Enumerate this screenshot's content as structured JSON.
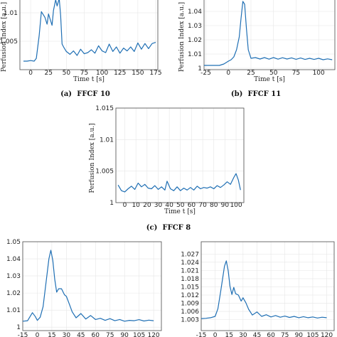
{
  "figure": {
    "series_color": "#1f6fb4"
  },
  "chart_data": [
    {
      "id": "a",
      "type": "line",
      "caption_tag": "(a)",
      "caption_name": "FFCF 10",
      "xlabel": "Time t [s]",
      "ylabel": "Perfusion Index [a.u.]",
      "xlim": [
        -15,
        178
      ],
      "ylim": [
        1.0,
        1.0125
      ],
      "xticks": [
        0,
        25,
        50,
        75,
        100,
        125,
        150,
        175
      ],
      "yticks": [
        1.005,
        1.01
      ],
      "grid": true,
      "series": [
        {
          "x": [
            -10,
            -5,
            0,
            5,
            8,
            12,
            15,
            18,
            20,
            23,
            25,
            27,
            30,
            32,
            35,
            37,
            40,
            42,
            44,
            47,
            50,
            55,
            60,
            65,
            70,
            75,
            80,
            85,
            90,
            95,
            100,
            105,
            110,
            115,
            120,
            125,
            130,
            135,
            140,
            145,
            150,
            155,
            160,
            165,
            170,
            175
          ],
          "y": [
            1.0015,
            1.0015,
            1.0016,
            1.0015,
            1.002,
            1.006,
            1.0102,
            1.0096,
            1.0092,
            1.008,
            1.0098,
            1.009,
            1.0078,
            1.0104,
            1.0123,
            1.0112,
            1.0125,
            1.0095,
            1.0045,
            1.0038,
            1.0032,
            1.0027,
            1.0033,
            1.0025,
            1.0036,
            1.0028,
            1.003,
            1.0035,
            1.0029,
            1.0042,
            1.0033,
            1.003,
            1.0045,
            1.0032,
            1.004,
            1.0029,
            1.0038,
            1.0033,
            1.004,
            1.0032,
            1.0047,
            1.0036,
            1.0046,
            1.0037,
            1.0046,
            1.0048
          ]
        }
      ]
    },
    {
      "id": "b",
      "type": "line",
      "caption_tag": "(b)",
      "caption_name": "FFCF 11",
      "xlabel": "Time t [s]",
      "ylabel": "Perfusion Index [a.u.]",
      "xlim": [
        -27,
        118
      ],
      "ylim": [
        0.999,
        1.049
      ],
      "xticks": [
        -25,
        0,
        25,
        50,
        75,
        100
      ],
      "yticks": [
        1,
        1.01,
        1.02,
        1.03,
        1.04
      ],
      "grid": true,
      "series": [
        {
          "x": [
            -27,
            -20,
            -10,
            -5,
            0,
            3,
            6,
            9,
            12,
            14,
            16,
            18,
            20,
            22,
            25,
            30,
            35,
            40,
            45,
            50,
            55,
            60,
            65,
            70,
            75,
            80,
            85,
            90,
            95,
            100,
            105,
            110,
            115
          ],
          "y": [
            1.002,
            1.002,
            1.002,
            1.003,
            1.005,
            1.006,
            1.008,
            1.013,
            1.022,
            1.035,
            1.047,
            1.045,
            1.028,
            1.013,
            1.007,
            1.0075,
            1.0065,
            1.0075,
            1.0064,
            1.0075,
            1.0064,
            1.0074,
            1.0065,
            1.0073,
            1.0063,
            1.0072,
            1.0062,
            1.007,
            1.0062,
            1.007,
            1.006,
            1.0066,
            1.006
          ]
        }
      ]
    },
    {
      "id": "c",
      "type": "line",
      "caption_tag": "(c)",
      "caption_name": "FFCF 8",
      "xlabel": "Time t [s]",
      "ylabel": "Perfusion Index [a.u.]",
      "xlim": [
        -8,
        107
      ],
      "ylim": [
        1.0,
        1.015
      ],
      "xticks": [
        0,
        10,
        20,
        30,
        40,
        50,
        60,
        70,
        80,
        90,
        100
      ],
      "yticks": [
        1,
        1.005,
        1.01,
        1.015
      ],
      "grid": true,
      "series": [
        {
          "x": [
            -6,
            -3,
            0,
            3,
            6,
            9,
            12,
            15,
            18,
            21,
            24,
            27,
            30,
            33,
            36,
            38,
            41,
            44,
            47,
            50,
            53,
            56,
            59,
            62,
            65,
            68,
            71,
            74,
            77,
            80,
            83,
            86,
            89,
            92,
            95,
            98,
            100,
            102,
            104
          ],
          "y": [
            1.0028,
            1.0019,
            1.0017,
            1.0022,
            1.0026,
            1.0021,
            1.0031,
            1.0025,
            1.0029,
            1.0023,
            1.0022,
            1.0027,
            1.0021,
            1.0025,
            1.002,
            1.0034,
            1.0022,
            1.0019,
            1.0025,
            1.0019,
            1.0023,
            1.002,
            1.0024,
            1.002,
            1.0026,
            1.0022,
            1.0024,
            1.0023,
            1.0025,
            1.0022,
            1.0027,
            1.0024,
            1.0028,
            1.0033,
            1.0029,
            1.004,
            1.0046,
            1.0036,
            1.002
          ]
        }
      ]
    },
    {
      "id": "d",
      "type": "line",
      "ylim": [
        0.998,
        1.05
      ],
      "xlim": [
        -15,
        128
      ],
      "yticks": [
        1,
        1.01,
        1.02,
        1.03,
        1.04,
        1.05
      ],
      "xticks": [
        -15,
        0,
        15,
        30,
        45,
        60,
        75,
        90,
        105,
        120
      ],
      "xtick_labels": [
        "-15",
        "0",
        "15",
        "30",
        "45",
        "60",
        "75",
        "90",
        "105",
        "120"
      ],
      "grid": true,
      "series": [
        {
          "x": [
            -15,
            -10,
            -5,
            -2,
            0,
            3,
            6,
            9,
            12,
            14,
            16,
            18,
            20,
            22,
            25,
            28,
            30,
            33,
            36,
            40,
            45,
            50,
            55,
            60,
            65,
            70,
            75,
            80,
            85,
            90,
            95,
            100,
            105,
            110,
            115,
            120
          ],
          "y": [
            1.0035,
            1.0038,
            1.0085,
            1.0062,
            1.004,
            1.0058,
            1.012,
            1.026,
            1.04,
            1.045,
            1.039,
            1.028,
            1.0205,
            1.0225,
            1.0225,
            1.019,
            1.018,
            1.0135,
            1.009,
            1.0055,
            1.008,
            1.0048,
            1.0068,
            1.0045,
            1.0052,
            1.004,
            1.005,
            1.0038,
            1.0045,
            1.0035,
            1.004,
            1.0038,
            1.0044,
            1.0036,
            1.0041,
            1.0038
          ]
        }
      ]
    },
    {
      "id": "e",
      "type": "line",
      "ylim": [
        0.999,
        1.0315
      ],
      "xlim": [
        -15,
        128
      ],
      "yticks": [
        1.003,
        1.006,
        1.009,
        1.012,
        1.015,
        1.018,
        1.021,
        1.024,
        1.027
      ],
      "xticks": [
        -15,
        0,
        15,
        30,
        45,
        60,
        75,
        90,
        105,
        120
      ],
      "xtick_labels": [
        "-15",
        "0",
        "15",
        "30",
        "45",
        "60",
        "75",
        "90",
        "105",
        "120"
      ],
      "grid": true,
      "series": [
        {
          "x": [
            -15,
            -10,
            -5,
            0,
            3,
            6,
            8,
            10,
            12,
            14,
            16,
            18,
            20,
            22,
            25,
            28,
            30,
            33,
            36,
            40,
            45,
            50,
            55,
            60,
            65,
            70,
            75,
            80,
            85,
            90,
            95,
            100,
            105,
            110,
            115,
            120
          ],
          "y": [
            1.0034,
            1.0035,
            1.0037,
            1.0042,
            1.007,
            1.0135,
            1.018,
            1.0225,
            1.0245,
            1.021,
            1.0152,
            1.0122,
            1.0148,
            1.0125,
            1.012,
            1.0098,
            1.011,
            1.0092,
            1.0068,
            1.0047,
            1.0058,
            1.0042,
            1.0048,
            1.004,
            1.0045,
            1.0039,
            1.0043,
            1.0038,
            1.0042,
            1.0037,
            1.0041,
            1.0037,
            1.004,
            1.0036,
            1.0039,
            1.0037
          ]
        }
      ]
    }
  ]
}
